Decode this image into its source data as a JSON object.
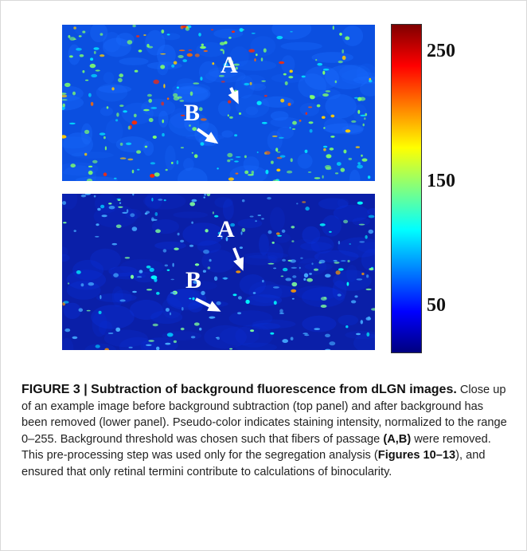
{
  "figure": {
    "panels": [
      {
        "name": "top",
        "labels": [
          "A",
          "B"
        ]
      },
      {
        "name": "bottom",
        "labels": [
          "A",
          "B"
        ]
      }
    ],
    "colorbar": {
      "ticks": [
        "250",
        "150",
        "50"
      ],
      "colors": [
        "#00007f",
        "#0000ff",
        "#0080ff",
        "#00ffff",
        "#80ff80",
        "#ffff00",
        "#ff8000",
        "#ff0000",
        "#7f0000"
      ]
    }
  },
  "caption": {
    "title": "FIGURE 3 | Subtraction of background fluorescence from dLGN images.",
    "text_1": " Close up of an example image before background subtraction (top panel) and after background has been removed (lower panel). Pseudo-color indicates staining intensity, normalized to the range 0–255. Background threshold was chosen such that fibers of passage ",
    "ref_1": "(A,B)",
    "text_2": " were removed. This pre-processing step was used only for the segregation analysis (",
    "ref_2": "Figures 10–13",
    "text_3": "), and ensured that only retinal termini contribute to calculations of binocularity."
  }
}
